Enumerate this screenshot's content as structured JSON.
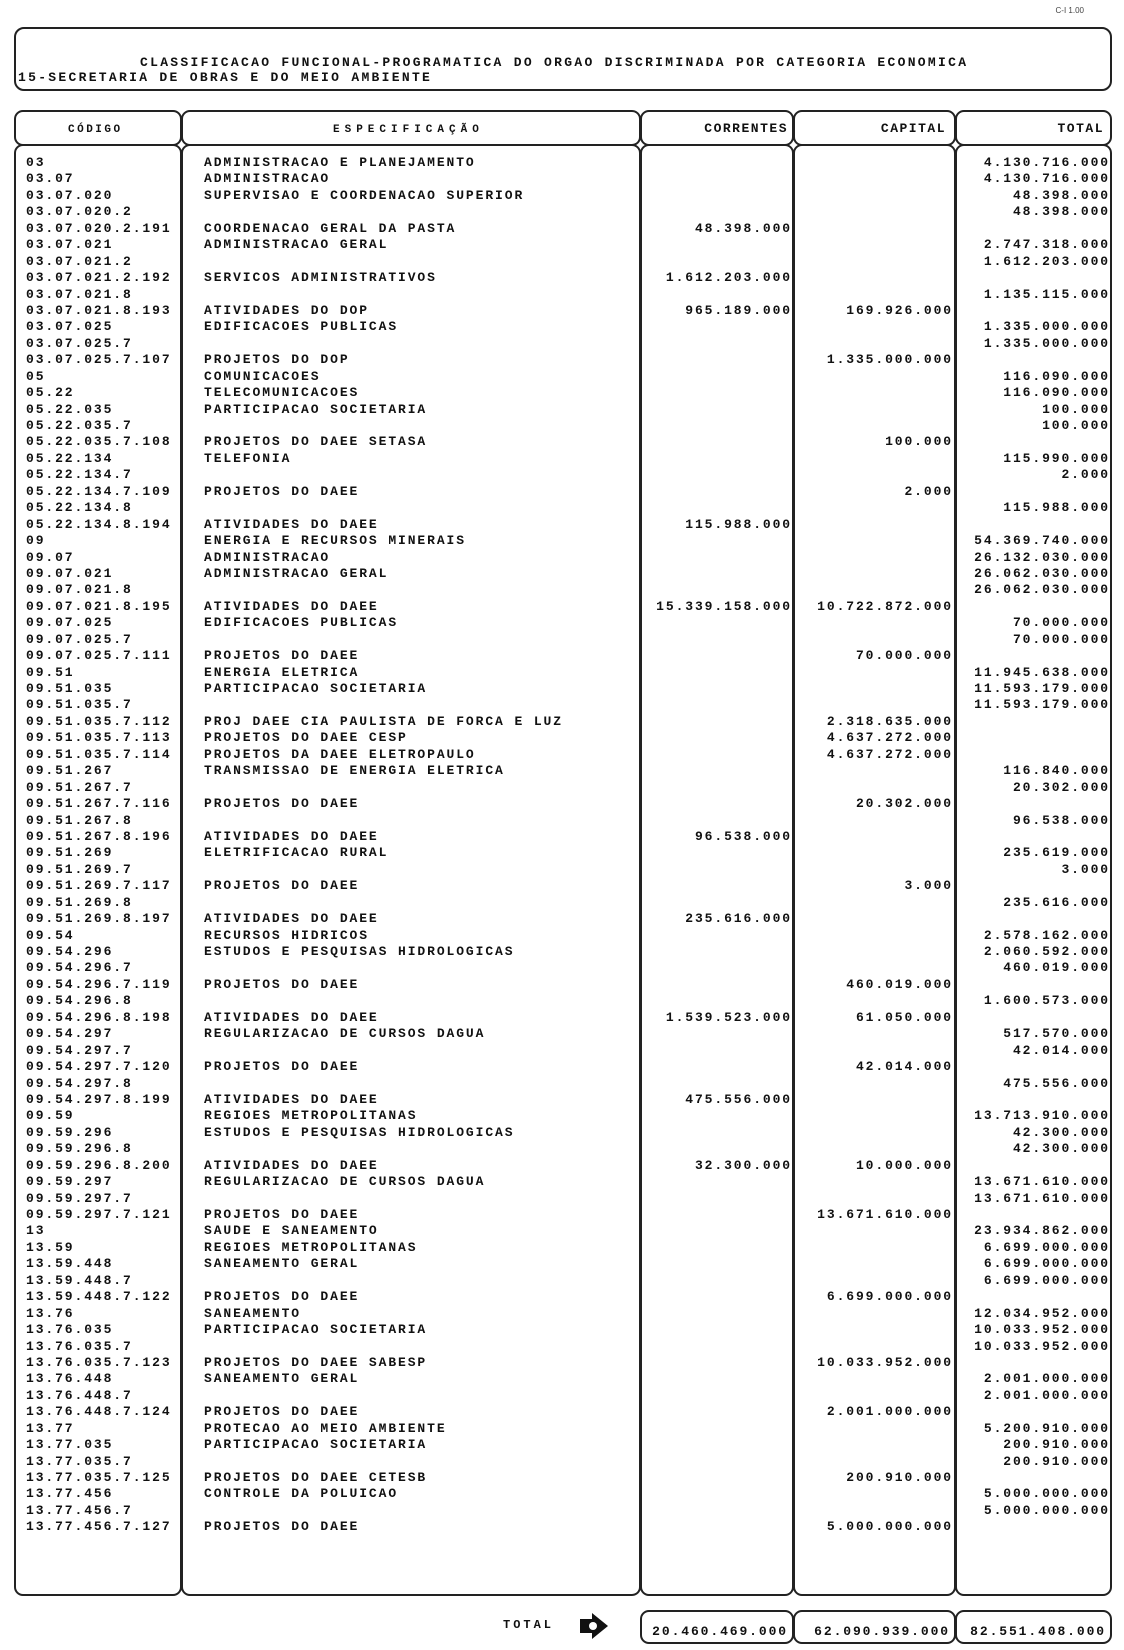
{
  "ref_code": "C-I 1.00",
  "header": {
    "title": "CLASSIFICACAO FUNCIONAL-PROGRAMATICA DO ORGAO DISCRIMINADA POR CATEGORIA ECONOMICA",
    "subtitle": "15-SECRETARIA DE OBRAS E DO MEIO AMBIENTE"
  },
  "columns": {
    "codigo": "CÓDIGO",
    "especificacao": "ESPECIFICAÇÃO",
    "correntes": "CORRENTES",
    "capital": "CAPITAL",
    "total": "TOTAL"
  },
  "rows": [
    [
      "03",
      "ADMINISTRACAO E PLANEJAMENTO",
      "",
      "",
      "4.130.716.000"
    ],
    [
      "03.07",
      "ADMINISTRACAO",
      "",
      "",
      "4.130.716.000"
    ],
    [
      "03.07.020",
      "SUPERVISAO E COORDENACAO SUPERIOR",
      "",
      "",
      "48.398.000"
    ],
    [
      "03.07.020.2",
      "",
      "",
      "",
      "48.398.000"
    ],
    [
      "03.07.020.2.191",
      "COORDENACAO GERAL DA PASTA",
      "48.398.000",
      "",
      ""
    ],
    [
      "03.07.021",
      "ADMINISTRACAO GERAL",
      "",
      "",
      "2.747.318.000"
    ],
    [
      "03.07.021.2",
      "",
      "",
      "",
      "1.612.203.000"
    ],
    [
      "03.07.021.2.192",
      "SERVICOS ADMINISTRATIVOS",
      "1.612.203.000",
      "",
      ""
    ],
    [
      "03.07.021.8",
      "",
      "",
      "",
      "1.135.115.000"
    ],
    [
      "03.07.021.8.193",
      "ATIVIDADES DO DOP",
      "965.189.000",
      "169.926.000",
      ""
    ],
    [
      "03.07.025",
      "EDIFICACOES PUBLICAS",
      "",
      "",
      "1.335.000.000"
    ],
    [
      "03.07.025.7",
      "",
      "",
      "",
      "1.335.000.000"
    ],
    [
      "03.07.025.7.107",
      "PROJETOS DO DOP",
      "",
      "1.335.000.000",
      ""
    ],
    [
      "05",
      "COMUNICACOES",
      "",
      "",
      "116.090.000"
    ],
    [
      "05.22",
      "TELECOMUNICACOES",
      "",
      "",
      "116.090.000"
    ],
    [
      "05.22.035",
      "PARTICIPACAO SOCIETARIA",
      "",
      "",
      "100.000"
    ],
    [
      "05.22.035.7",
      "",
      "",
      "",
      "100.000"
    ],
    [
      "05.22.035.7.108",
      "PROJETOS DO DAEE SETASA",
      "",
      "100.000",
      ""
    ],
    [
      "05.22.134",
      "TELEFONIA",
      "",
      "",
      "115.990.000"
    ],
    [
      "05.22.134.7",
      "",
      "",
      "",
      "2.000"
    ],
    [
      "05.22.134.7.109",
      "PROJETOS DO DAEE",
      "",
      "2.000",
      ""
    ],
    [
      "05.22.134.8",
      "",
      "",
      "",
      "115.988.000"
    ],
    [
      "05.22.134.8.194",
      "ATIVIDADES DO DAEE",
      "115.988.000",
      "",
      ""
    ],
    [
      "09",
      "ENERGIA E RECURSOS MINERAIS",
      "",
      "",
      "54.369.740.000"
    ],
    [
      "09.07",
      "ADMINISTRACAO",
      "",
      "",
      "26.132.030.000"
    ],
    [
      "09.07.021",
      "ADMINISTRACAO GERAL",
      "",
      "",
      "26.062.030.000"
    ],
    [
      "09.07.021.8",
      "",
      "",
      "",
      "26.062.030.000"
    ],
    [
      "09.07.021.8.195",
      "ATIVIDADES DO DAEE",
      "15.339.158.000",
      "10.722.872.000",
      ""
    ],
    [
      "09.07.025",
      "EDIFICACOES PUBLICAS",
      "",
      "",
      "70.000.000"
    ],
    [
      "09.07.025.7",
      "",
      "",
      "",
      "70.000.000"
    ],
    [
      "09.07.025.7.111",
      "PROJETOS DO DAEE",
      "",
      "70.000.000",
      ""
    ],
    [
      "09.51",
      "ENERGIA ELETRICA",
      "",
      "",
      "11.945.638.000"
    ],
    [
      "09.51.035",
      "PARTICIPACAO SOCIETARIA",
      "",
      "",
      "11.593.179.000"
    ],
    [
      "09.51.035.7",
      "",
      "",
      "",
      "11.593.179.000"
    ],
    [
      "09.51.035.7.112",
      "PROJ DAEE CIA PAULISTA DE FORCA E LUZ",
      "",
      "2.318.635.000",
      ""
    ],
    [
      "09.51.035.7.113",
      "PROJETOS DO DAEE CESP",
      "",
      "4.637.272.000",
      ""
    ],
    [
      "09.51.035.7.114",
      "PROJETOS DA DAEE ELETROPAULO",
      "",
      "4.637.272.000",
      ""
    ],
    [
      "09.51.267",
      "TRANSMISSAO DE ENERGIA ELETRICA",
      "",
      "",
      "116.840.000"
    ],
    [
      "09.51.267.7",
      "",
      "",
      "",
      "20.302.000"
    ],
    [
      "09.51.267.7.116",
      "PROJETOS DO DAEE",
      "",
      "20.302.000",
      ""
    ],
    [
      "09.51.267.8",
      "",
      "",
      "",
      "96.538.000"
    ],
    [
      "09.51.267.8.196",
      "ATIVIDADES DO DAEE",
      "96.538.000",
      "",
      ""
    ],
    [
      "09.51.269",
      "ELETRIFICACAO RURAL",
      "",
      "",
      "235.619.000"
    ],
    [
      "09.51.269.7",
      "",
      "",
      "",
      "3.000"
    ],
    [
      "09.51.269.7.117",
      "PROJETOS DO DAEE",
      "",
      "3.000",
      ""
    ],
    [
      "09.51.269.8",
      "",
      "",
      "",
      "235.616.000"
    ],
    [
      "09.51.269.8.197",
      "ATIVIDADES DO DAEE",
      "235.616.000",
      "",
      ""
    ],
    [
      "09.54",
      "RECURSOS HIDRICOS",
      "",
      "",
      "2.578.162.000"
    ],
    [
      "09.54.296",
      "ESTUDOS E PESQUISAS HIDROLOGICAS",
      "",
      "",
      "2.060.592.000"
    ],
    [
      "09.54.296.7",
      "",
      "",
      "",
      "460.019.000"
    ],
    [
      "09.54.296.7.119",
      "PROJETOS DO DAEE",
      "",
      "460.019.000",
      ""
    ],
    [
      "09.54.296.8",
      "",
      "",
      "",
      "1.600.573.000"
    ],
    [
      "09.54.296.8.198",
      "ATIVIDADES DO DAEE",
      "1.539.523.000",
      "61.050.000",
      ""
    ],
    [
      "09.54.297",
      "REGULARIZACAO DE CURSOS DAGUA",
      "",
      "",
      "517.570.000"
    ],
    [
      "09.54.297.7",
      "",
      "",
      "",
      "42.014.000"
    ],
    [
      "09.54.297.7.120",
      "PROJETOS DO DAEE",
      "",
      "42.014.000",
      ""
    ],
    [
      "09.54.297.8",
      "",
      "",
      "",
      "475.556.000"
    ],
    [
      "09.54.297.8.199",
      "ATIVIDADES DO DAEE",
      "475.556.000",
      "",
      ""
    ],
    [
      "09.59",
      "REGIOES METROPOLITANAS",
      "",
      "",
      "13.713.910.000"
    ],
    [
      "09.59.296",
      "ESTUDOS E PESQUISAS HIDROLOGICAS",
      "",
      "",
      "42.300.000"
    ],
    [
      "09.59.296.8",
      "",
      "",
      "",
      "42.300.000"
    ],
    [
      "09.59.296.8.200",
      "ATIVIDADES DO DAEE",
      "32.300.000",
      "10.000.000",
      ""
    ],
    [
      "09.59.297",
      "REGULARIZACAO DE CURSOS DAGUA",
      "",
      "",
      "13.671.610.000"
    ],
    [
      "09.59.297.7",
      "",
      "",
      "",
      "13.671.610.000"
    ],
    [
      "09.59.297.7.121",
      "PROJETOS DO DAEE",
      "",
      "13.671.610.000",
      ""
    ],
    [
      "13",
      "SAUDE E SANEAMENTO",
      "",
      "",
      "23.934.862.000"
    ],
    [
      "13.59",
      "REGIOES METROPOLITANAS",
      "",
      "",
      "6.699.000.000"
    ],
    [
      "13.59.448",
      "SANEAMENTO GERAL",
      "",
      "",
      "6.699.000.000"
    ],
    [
      "13.59.448.7",
      "",
      "",
      "",
      "6.699.000.000"
    ],
    [
      "13.59.448.7.122",
      "PROJETOS DO DAEE",
      "",
      "6.699.000.000",
      ""
    ],
    [
      "13.76",
      "SANEAMENTO",
      "",
      "",
      "12.034.952.000"
    ],
    [
      "13.76.035",
      "PARTICIPACAO SOCIETARIA",
      "",
      "",
      "10.033.952.000"
    ],
    [
      "13.76.035.7",
      "",
      "",
      "",
      "10.033.952.000"
    ],
    [
      "13.76.035.7.123",
      "PROJETOS DO DAEE SABESP",
      "",
      "10.033.952.000",
      ""
    ],
    [
      "13.76.448",
      "SANEAMENTO GERAL",
      "",
      "",
      "2.001.000.000"
    ],
    [
      "13.76.448.7",
      "",
      "",
      "",
      "2.001.000.000"
    ],
    [
      "13.76.448.7.124",
      "PROJETOS DO DAEE",
      "",
      "2.001.000.000",
      ""
    ],
    [
      "13.77",
      "PROTECAO AO MEIO AMBIENTE",
      "",
      "",
      "5.200.910.000"
    ],
    [
      "13.77.035",
      "PARTICIPACAO SOCIETARIA",
      "",
      "",
      "200.910.000"
    ],
    [
      "13.77.035.7",
      "",
      "",
      "",
      "200.910.000"
    ],
    [
      "13.77.035.7.125",
      "PROJETOS DO DAEE CETESB",
      "",
      "200.910.000",
      ""
    ],
    [
      "13.77.456",
      "CONTROLE DA POLUICAO",
      "",
      "",
      "5.000.000.000"
    ],
    [
      "13.77.456.7",
      "",
      "",
      "",
      "5.000.000.000"
    ],
    [
      "13.77.456.7.127",
      "PROJETOS DO DAEE",
      "",
      "5.000.000.000",
      ""
    ]
  ],
  "totals": {
    "label": "TOTAL",
    "arrow_icon": "arrow-right-icon",
    "correntes": "20.460.469.000",
    "capital": "62.090.939.000",
    "total": "82.551.408.000"
  }
}
